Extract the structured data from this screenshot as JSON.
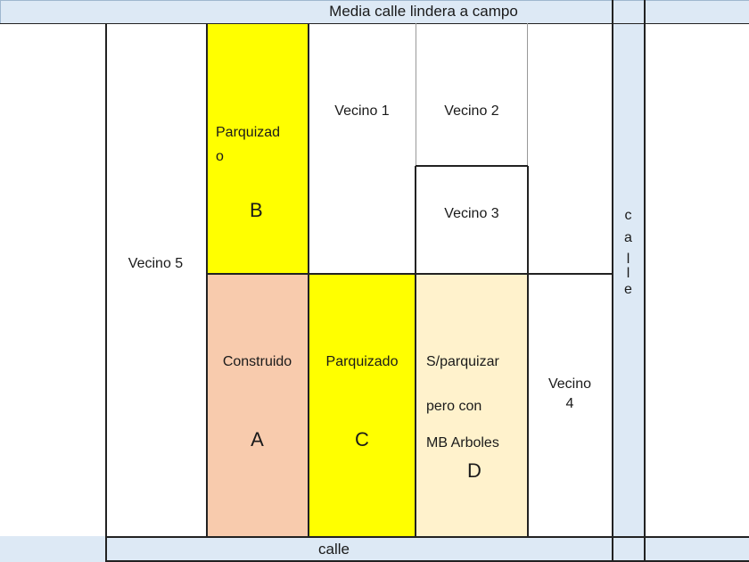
{
  "streets": {
    "top_label": "Media calle lindera a campo",
    "bottom_label": "calle",
    "right_letters": [
      "c",
      "a",
      "l",
      "l",
      "e"
    ]
  },
  "neighbors": {
    "vecino1": "Vecino 1",
    "vecino2": "Vecino 2",
    "vecino3": "Vecino 3",
    "vecino4_line1": "Vecino",
    "vecino4_line2": "4",
    "vecino5": "Vecino 5"
  },
  "lots": {
    "b": {
      "label_line1": "Parquizad",
      "label_line2": "o",
      "letter": "B",
      "color": "#ffff00"
    },
    "a": {
      "label": "Construido",
      "letter": "A",
      "color": "#f8cbad"
    },
    "c": {
      "label": "Parquizado",
      "letter": "C",
      "color": "#ffff00"
    },
    "d": {
      "label_line1": "S/parquizar",
      "label_line2": "pero con",
      "label_line3": "MB Arboles",
      "letter": "D",
      "color": "#fff2cc"
    }
  },
  "colors": {
    "street": "#dde9f5",
    "border": "#000000"
  }
}
